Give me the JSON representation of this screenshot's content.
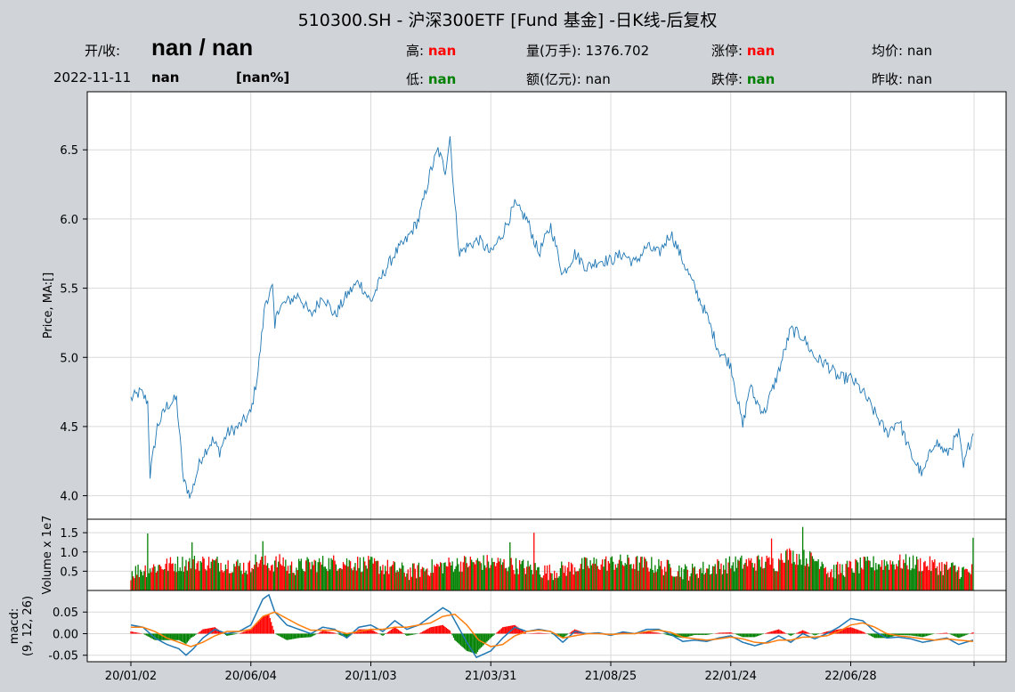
{
  "header": {
    "title": "510300.SH - 沪深300ETF [Fund 基金] -日K线-后复权",
    "open_close_label": "开/收:",
    "open_close_value": "nan / nan",
    "date": "2022-11-11",
    "change": "nan",
    "change_pct": "[nan%]",
    "high_label": "高:",
    "high_value": "nan",
    "low_label": "低:",
    "low_value": "nan",
    "volume_label": "量(万手):",
    "volume_value": "1376.702",
    "amount_label": "额(亿元):",
    "amount_value": "nan",
    "limit_up_label": "涨停:",
    "limit_up_value": "nan",
    "limit_down_label": "跌停:",
    "limit_down_value": "nan",
    "avg_label": "均价:",
    "avg_value": "nan",
    "prev_close_label": "昨收:",
    "prev_close_value": "nan"
  },
  "colors": {
    "background": "#d0d4d9",
    "price_line": "#1f77b4",
    "up": "#ff0000",
    "down": "#008000",
    "macd_line": "#1f77b4",
    "signal_line": "#ff7f0e",
    "grid": "#d9d9d9"
  },
  "chart_data": [
    {
      "type": "line",
      "ylabel": "Price, MA:[]",
      "ylim": [
        3.83,
        6.92
      ],
      "yticks": [
        "4.0",
        "4.5",
        "5.0",
        "5.5",
        "6.0",
        "6.5"
      ],
      "ytick_values": [
        4.0,
        4.5,
        5.0,
        5.5,
        6.0,
        6.5
      ],
      "x_tick_labels": [
        "20/01/02",
        "20/06/04",
        "20/11/03",
        "21/03/31",
        "21/08/25",
        "22/01/24",
        "22/06/28"
      ],
      "x_tick_index": [
        0,
        100,
        200,
        300,
        400,
        500,
        600
      ],
      "grid": true,
      "series": [
        {
          "name": "",
          "x_index": [
            0,
            8,
            14,
            16,
            22,
            30,
            38,
            44,
            50,
            56,
            60,
            64,
            68,
            74,
            80,
            90,
            100,
            106,
            112,
            118,
            120,
            122,
            130,
            140,
            150,
            160,
            170,
            180,
            190,
            200,
            210,
            220,
            230,
            240,
            250,
            256,
            262,
            266,
            270,
            274,
            280,
            290,
            300,
            310,
            320,
            330,
            340,
            350,
            360,
            370,
            380,
            390,
            400,
            410,
            420,
            430,
            440,
            450,
            460,
            470,
            480,
            490,
            500,
            510,
            516,
            520,
            528,
            534,
            540,
            550,
            560,
            570,
            580,
            590,
            600,
            610,
            620,
            630,
            640,
            650,
            660,
            670,
            680,
            690,
            694,
            698,
            702
          ],
          "values": [
            4.7,
            4.75,
            4.68,
            4.15,
            4.5,
            4.65,
            4.7,
            4.1,
            4.0,
            4.2,
            4.3,
            4.35,
            4.4,
            4.32,
            4.45,
            4.5,
            4.6,
            4.9,
            5.4,
            5.5,
            5.2,
            5.35,
            5.4,
            5.45,
            5.3,
            5.45,
            5.3,
            5.45,
            5.55,
            5.4,
            5.6,
            5.75,
            5.85,
            6.0,
            6.35,
            6.5,
            6.35,
            6.6,
            6.1,
            5.75,
            5.8,
            5.85,
            5.75,
            5.9,
            6.1,
            6.0,
            5.75,
            5.95,
            5.6,
            5.75,
            5.65,
            5.7,
            5.7,
            5.75,
            5.68,
            5.8,
            5.75,
            5.9,
            5.7,
            5.5,
            5.3,
            5.05,
            4.95,
            4.5,
            4.8,
            4.7,
            4.6,
            4.75,
            4.9,
            5.2,
            5.15,
            5.0,
            4.95,
            4.85,
            4.85,
            4.75,
            4.6,
            4.45,
            4.55,
            4.3,
            4.15,
            4.4,
            4.3,
            4.45,
            4.2,
            4.35,
            4.45
          ]
        }
      ]
    },
    {
      "type": "bar",
      "ylabel": "Volume x 1e7",
      "ylim": [
        0,
        1.85
      ],
      "yticks": [
        "0.5",
        "1.0",
        "1.5"
      ],
      "ytick_values": [
        0.5,
        1.0,
        1.5
      ],
      "grid": true,
      "bar_count": 703,
      "notable_peaks": [
        {
          "x_index": 14,
          "value": 1.48,
          "color": "down"
        },
        {
          "x_index": 51,
          "value": 1.25,
          "color": "down"
        },
        {
          "x_index": 110,
          "value": 1.28,
          "color": "down"
        },
        {
          "x_index": 316,
          "value": 1.25,
          "color": "down"
        },
        {
          "x_index": 336,
          "value": 1.5,
          "color": "up"
        },
        {
          "x_index": 534,
          "value": 1.35,
          "color": "up"
        },
        {
          "x_index": 560,
          "value": 1.65,
          "color": "down"
        },
        {
          "x_index": 702,
          "value": 1.37,
          "color": "down"
        }
      ]
    },
    {
      "type": "line",
      "ylabel": "macd:\n(9, 12, 26)",
      "ylim": [
        -0.065,
        0.1
      ],
      "yticks": [
        "-0.05",
        "0.00",
        "0.05"
      ],
      "ytick_values": [
        -0.05,
        0.0,
        0.05
      ],
      "grid": true,
      "series": [
        {
          "name": "macd",
          "x_index": [
            0,
            10,
            20,
            30,
            40,
            46,
            52,
            60,
            70,
            80,
            90,
            100,
            110,
            115,
            120,
            125,
            130,
            140,
            150,
            160,
            170,
            180,
            190,
            200,
            210,
            220,
            230,
            240,
            250,
            260,
            266,
            272,
            280,
            288,
            300,
            310,
            320,
            330,
            340,
            350,
            360,
            370,
            380,
            390,
            400,
            410,
            420,
            430,
            440,
            450,
            460,
            470,
            480,
            490,
            500,
            510,
            520,
            530,
            540,
            550,
            560,
            570,
            580,
            590,
            600,
            610,
            620,
            630,
            640,
            650,
            660,
            670,
            680,
            690,
            702
          ],
          "values": [
            0.02,
            0.015,
            -0.01,
            -0.025,
            -0.035,
            -0.05,
            -0.035,
            -0.01,
            0.01,
            0.0,
            0.005,
            0.02,
            0.08,
            0.09,
            0.05,
            0.035,
            0.02,
            0.01,
            0.0,
            0.015,
            0.01,
            -0.01,
            0.015,
            0.02,
            0.005,
            0.03,
            0.01,
            0.02,
            0.04,
            0.06,
            0.05,
            0.02,
            -0.02,
            -0.055,
            -0.04,
            -0.01,
            0.015,
            0.005,
            0.01,
            0.005,
            -0.02,
            0.005,
            0.0,
            0.002,
            -0.004,
            0.004,
            0.0,
            0.01,
            0.01,
            -0.002,
            -0.018,
            -0.015,
            -0.018,
            -0.01,
            -0.005,
            -0.02,
            -0.028,
            -0.02,
            -0.005,
            -0.02,
            0.0,
            -0.012,
            0.0,
            0.015,
            0.035,
            0.03,
            0.005,
            -0.01,
            -0.008,
            -0.012,
            -0.02,
            -0.015,
            -0.01,
            -0.025,
            -0.015
          ]
        },
        {
          "name": "signal",
          "x_index": [
            0,
            10,
            20,
            30,
            40,
            50,
            60,
            70,
            80,
            90,
            100,
            110,
            120,
            130,
            140,
            150,
            160,
            170,
            180,
            190,
            200,
            210,
            220,
            230,
            240,
            250,
            260,
            270,
            280,
            290,
            300,
            310,
            320,
            330,
            340,
            350,
            360,
            370,
            380,
            390,
            400,
            410,
            420,
            430,
            440,
            450,
            460,
            470,
            480,
            490,
            500,
            510,
            520,
            530,
            540,
            550,
            560,
            570,
            580,
            590,
            600,
            610,
            620,
            630,
            640,
            650,
            660,
            670,
            680,
            690,
            702
          ],
          "values": [
            0.015,
            0.015,
            0.005,
            -0.01,
            -0.02,
            -0.03,
            -0.02,
            -0.005,
            0.005,
            0.005,
            0.01,
            0.04,
            0.05,
            0.035,
            0.02,
            0.008,
            0.008,
            0.008,
            0.0,
            0.005,
            0.01,
            0.01,
            0.015,
            0.015,
            0.02,
            0.025,
            0.04,
            0.045,
            0.02,
            -0.015,
            -0.03,
            -0.025,
            -0.005,
            0.005,
            0.008,
            0.005,
            -0.01,
            -0.005,
            0.0,
            0.0,
            -0.002,
            0.0,
            0.0,
            0.005,
            0.008,
            0.003,
            -0.008,
            -0.012,
            -0.015,
            -0.012,
            -0.008,
            -0.012,
            -0.02,
            -0.022,
            -0.015,
            -0.015,
            -0.008,
            -0.008,
            -0.005,
            0.005,
            0.02,
            0.025,
            0.015,
            0.0,
            -0.005,
            -0.008,
            -0.012,
            -0.015,
            -0.012,
            -0.015,
            -0.018
          ]
        }
      ]
    }
  ]
}
